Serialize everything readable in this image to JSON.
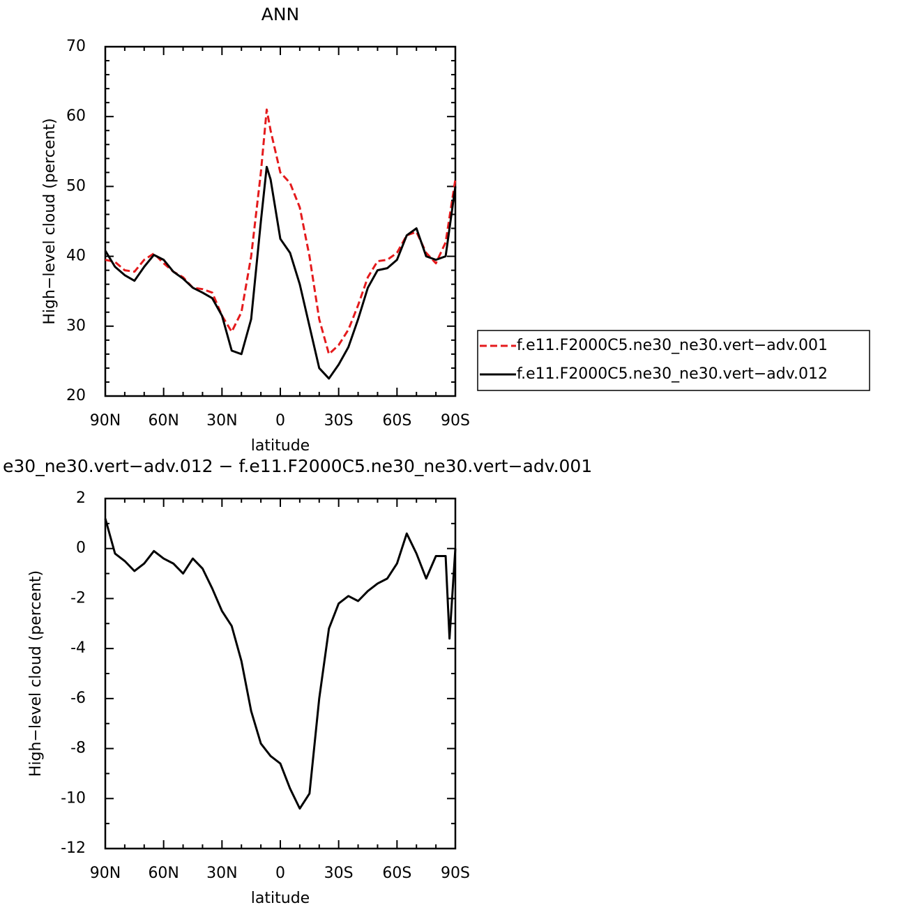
{
  "chart_data": [
    {
      "type": "line",
      "title": "ANN",
      "xlabel": "latitude",
      "ylabel": "High−level cloud (percent)",
      "x": [
        90,
        85,
        80,
        75,
        70,
        65,
        60,
        55,
        50,
        45,
        40,
        35,
        30,
        25,
        20,
        15,
        10,
        7,
        5,
        0,
        -5,
        -10,
        -15,
        -20,
        -25,
        -30,
        -35,
        -40,
        -45,
        -50,
        -55,
        -60,
        -65,
        -70,
        -75,
        -80,
        -85,
        -90
      ],
      "series": [
        {
          "name": "f.e11.F2000C5.ne30_ne30.vert−adv.001",
          "color": "#e41a1c",
          "linestyle": "dashed",
          "values": [
            39.5,
            39.2,
            38.0,
            37.8,
            39.5,
            40.4,
            39.0,
            37.8,
            37.0,
            35.5,
            35.3,
            34.8,
            31.5,
            29.2,
            32.0,
            40.0,
            52.0,
            61.0,
            58.0,
            52.0,
            50.5,
            47.0,
            40.0,
            31.0,
            26.0,
            27.3,
            29.5,
            33.0,
            37.0,
            39.3,
            39.5,
            40.5,
            43.0,
            43.5,
            40.5,
            39.0,
            42.0,
            51.0
          ]
        },
        {
          "name": "f.e11.F2000C5.ne30_ne30.vert−adv.012",
          "color": "#000000",
          "linestyle": "solid",
          "values": [
            40.8,
            38.5,
            37.3,
            36.5,
            38.5,
            40.2,
            39.5,
            37.8,
            36.8,
            35.5,
            34.8,
            34.0,
            31.5,
            26.5,
            26.0,
            31.0,
            45.0,
            52.8,
            51.0,
            42.5,
            40.5,
            36.0,
            30.0,
            24.0,
            22.5,
            24.5,
            27.0,
            31.0,
            35.5,
            38.0,
            38.3,
            39.5,
            43.0,
            44.0,
            40.0,
            39.5,
            40.0,
            50.0
          ]
        }
      ],
      "xlim": [
        90,
        -90
      ],
      "xticks": [
        {
          "value": 90,
          "label": "90N"
        },
        {
          "value": 60,
          "label": "60N"
        },
        {
          "value": 30,
          "label": "30N"
        },
        0,
        {
          "value": -30,
          "label": "30S"
        },
        {
          "value": -60,
          "label": "60S"
        },
        {
          "value": -90,
          "label": "90S"
        }
      ],
      "xminorticks": [
        80,
        70,
        50,
        40,
        20,
        10,
        -10,
        -20,
        -40,
        -50,
        -70,
        -80
      ],
      "ylim": [
        20,
        70
      ],
      "yticks": [
        20,
        30,
        40,
        50,
        60,
        70
      ],
      "yminorticks": [
        22,
        24,
        26,
        28,
        32,
        34,
        36,
        38,
        42,
        44,
        46,
        48,
        52,
        54,
        56,
        58,
        62,
        64,
        66,
        68
      ],
      "legend": "right"
    },
    {
      "type": "line",
      "title": "e30_ne30.vert−adv.012 − f.e11.F2000C5.ne30_ne30.vert−adv.001",
      "xlabel": "latitude",
      "ylabel": "High−level cloud (percent)",
      "x": [
        90,
        85,
        80,
        75,
        70,
        65,
        60,
        55,
        50,
        45,
        40,
        35,
        30,
        25,
        20,
        15,
        10,
        5,
        0,
        -5,
        -10,
        -15,
        -20,
        -25,
        -30,
        -35,
        -40,
        -45,
        -50,
        -55,
        -60,
        -65,
        -70,
        -75,
        -80,
        -85,
        -87,
        -90
      ],
      "series": [
        {
          "color": "#000000",
          "linestyle": "solid",
          "values": [
            1.2,
            -0.2,
            -0.5,
            -0.9,
            -0.6,
            -0.1,
            -0.4,
            -0.6,
            -1.0,
            -0.4,
            -0.8,
            -1.6,
            -2.5,
            -3.1,
            -4.5,
            -6.5,
            -7.8,
            -8.3,
            -8.6,
            -9.6,
            -10.4,
            -9.8,
            -6.0,
            -3.2,
            -2.2,
            -1.9,
            -2.1,
            -1.7,
            -1.4,
            -1.2,
            -0.6,
            0.6,
            -0.2,
            -1.2,
            -0.3,
            -0.3,
            -3.6,
            0.0
          ]
        }
      ],
      "xlim": [
        90,
        -90
      ],
      "xticks": [
        {
          "value": 90,
          "label": "90N"
        },
        {
          "value": 60,
          "label": "60N"
        },
        {
          "value": 30,
          "label": "30N"
        },
        0,
        {
          "value": -30,
          "label": "30S"
        },
        {
          "value": -60,
          "label": "60S"
        },
        {
          "value": -90,
          "label": "90S"
        }
      ],
      "xminorticks": [
        80,
        70,
        50,
        40,
        20,
        10,
        -10,
        -20,
        -40,
        -50,
        -70,
        -80
      ],
      "ylim": [
        -12,
        2
      ],
      "yticks": [
        -12,
        -10,
        -8,
        -6,
        -4,
        -2,
        0,
        2
      ],
      "yminorticks": [
        -11,
        -9,
        -7,
        -5,
        -3,
        -1,
        1
      ]
    }
  ]
}
